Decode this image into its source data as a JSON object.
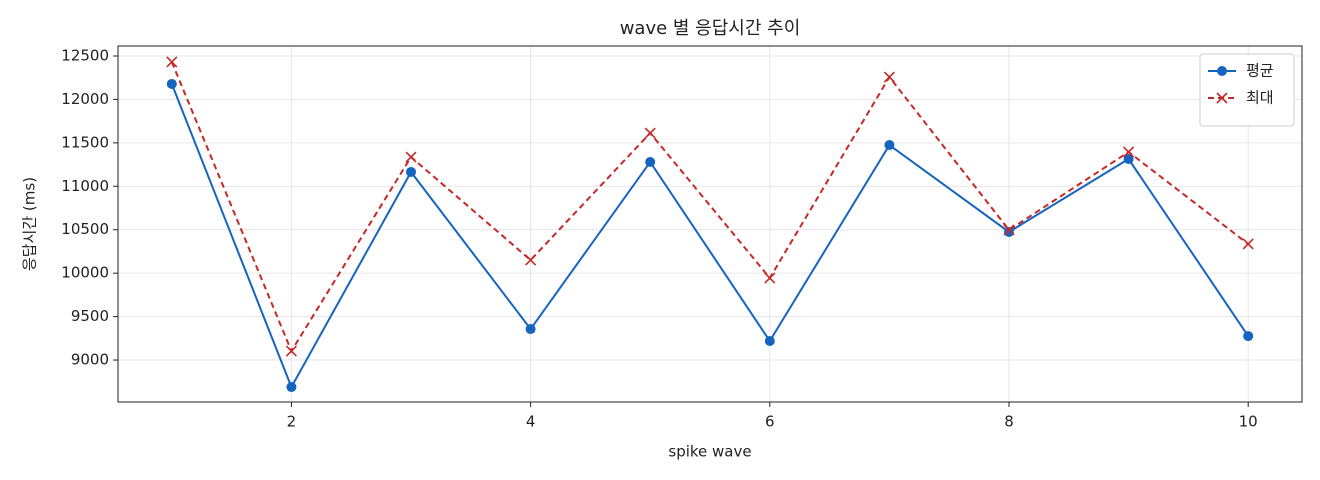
{
  "chart_data": {
    "type": "line",
    "title": "wave 별 응답시간 추이",
    "xlabel": "spike wave",
    "ylabel": "응답시간 (ms)",
    "x": [
      1,
      2,
      3,
      4,
      5,
      6,
      7,
      8,
      9,
      10
    ],
    "series": [
      {
        "name": "평균",
        "color": "#1565c0",
        "marker": "circle",
        "linestyle": "solid",
        "values": [
          12178,
          8689,
          11165,
          9357,
          11280,
          9219,
          11475,
          10474,
          11314,
          9276
        ]
      },
      {
        "name": "최대",
        "color": "#c62828",
        "marker": "x",
        "linestyle": "dashed",
        "values": [
          12431,
          9104,
          11337,
          10151,
          11613,
          9944,
          12258,
          10497,
          11395,
          10336
        ]
      }
    ],
    "xlim": [
      0.55,
      10.45
    ],
    "xticks": [
      2,
      4,
      6,
      8,
      10
    ],
    "ylim": [
      8517,
      12615
    ],
    "yticks": [
      9000,
      9500,
      10000,
      10500,
      11000,
      11500,
      12000,
      12500
    ],
    "grid": true,
    "legend": "upper right"
  }
}
